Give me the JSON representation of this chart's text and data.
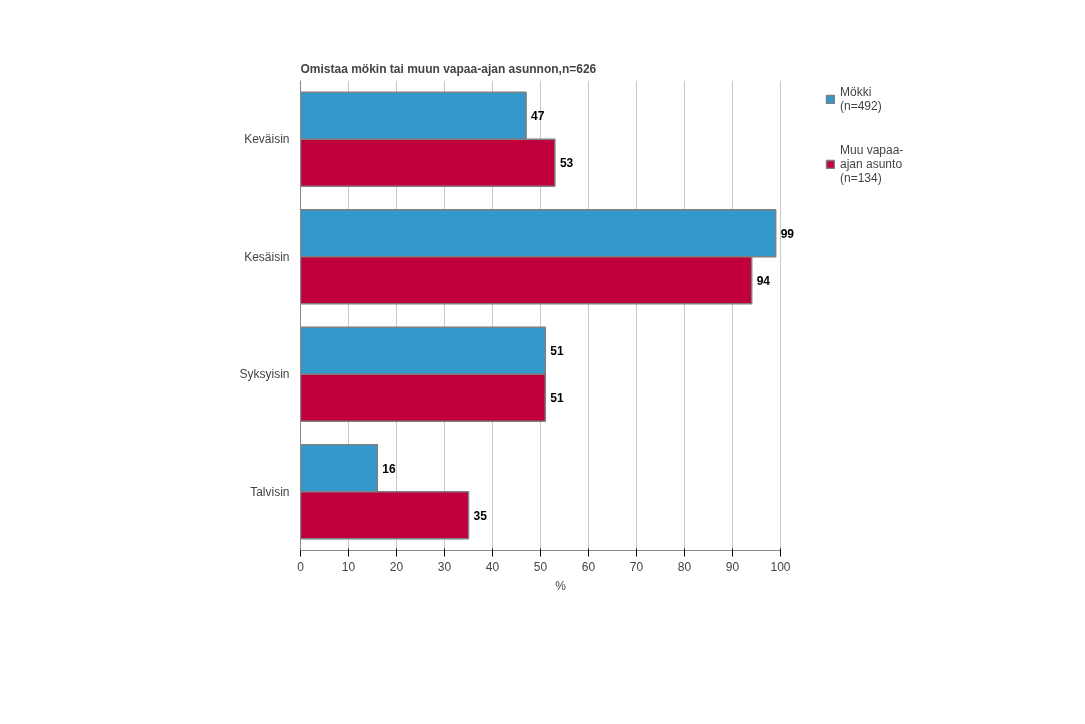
{
  "chart_data": {
    "type": "bar",
    "orientation": "horizontal",
    "title": "Omistaa mökin tai muun vapaa-ajan asunnon,n=626",
    "categories": [
      "Keväisin",
      "Kesäisin",
      "Syksyisin",
      "Talvisin"
    ],
    "series": [
      {
        "name": "Mökki (n=492)",
        "color": "#3399cc",
        "values": [
          47,
          99,
          51,
          16
        ]
      },
      {
        "name": "Muu vapaa-ajan asunto (n=134)",
        "color": "#c0003c",
        "values": [
          53,
          94,
          51,
          35
        ]
      }
    ],
    "xlabel": "%",
    "xlim": [
      0,
      100
    ],
    "xticks": [
      0,
      10,
      20,
      30,
      40,
      50,
      60,
      70,
      80,
      90,
      100
    ],
    "grid": "x",
    "legend": "right",
    "data_labels": true
  }
}
